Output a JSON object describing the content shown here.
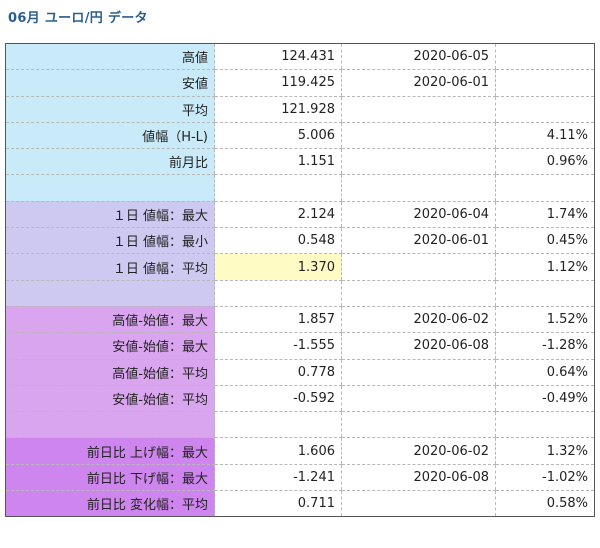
{
  "title": "06月 ユーロ/円 データ",
  "colors": {
    "high": "#3a9a3a",
    "low": "#c0392b",
    "label_blue": "#c9eaf8",
    "label_lavender": "#cdc9f1",
    "label_purple": "#d9a5ef",
    "label_violet": "#cf85ee",
    "highlight": "#fffbc4"
  },
  "rows": [
    {
      "label": "高値",
      "value": "124.431",
      "date": "2020-06-05",
      "pct": ""
    },
    {
      "label": "安値",
      "value": "119.425",
      "date": "2020-06-01",
      "pct": ""
    },
    {
      "label": "平均",
      "value": "121.928",
      "date": "",
      "pct": ""
    },
    {
      "label": "値幅（H-L)",
      "value": "5.006",
      "date": "",
      "pct": "4.11%"
    },
    {
      "label": "前月比",
      "value": "1.151",
      "date": "",
      "pct": "0.96%"
    },
    {
      "label": "",
      "value": "",
      "date": "",
      "pct": ""
    },
    {
      "label": "１日 値幅：最大",
      "value": "2.124",
      "date": "2020-06-04",
      "pct": "1.74%"
    },
    {
      "label": "１日 値幅：最小",
      "value": "0.548",
      "date": "2020-06-01",
      "pct": "0.45%"
    },
    {
      "label": "１日 値幅：平均",
      "value": "1.370",
      "date": "",
      "pct": "1.12%"
    },
    {
      "label": "",
      "value": "",
      "date": "",
      "pct": ""
    },
    {
      "label": "高値-始値：最大",
      "value": "1.857",
      "date": "2020-06-02",
      "pct": "1.52%"
    },
    {
      "label": "安値-始値：最大",
      "value": "-1.555",
      "date": "2020-06-08",
      "pct": "-1.28%"
    },
    {
      "label": "高値-始値：平均",
      "value": "0.778",
      "date": "",
      "pct": "0.64%"
    },
    {
      "label": "安値-始値：平均",
      "value": "-0.592",
      "date": "",
      "pct": "-0.49%"
    },
    {
      "label": "",
      "value": "",
      "date": "",
      "pct": ""
    },
    {
      "label": "前日比 上げ幅：最大",
      "value": "1.606",
      "date": "2020-06-02",
      "pct": "1.32%"
    },
    {
      "label": "前日比 下げ幅：最大",
      "value": "-1.241",
      "date": "2020-06-08",
      "pct": "-1.02%"
    },
    {
      "label": "前日比 変化幅：平均",
      "value": "0.711",
      "date": "",
      "pct": "0.58%"
    }
  ]
}
